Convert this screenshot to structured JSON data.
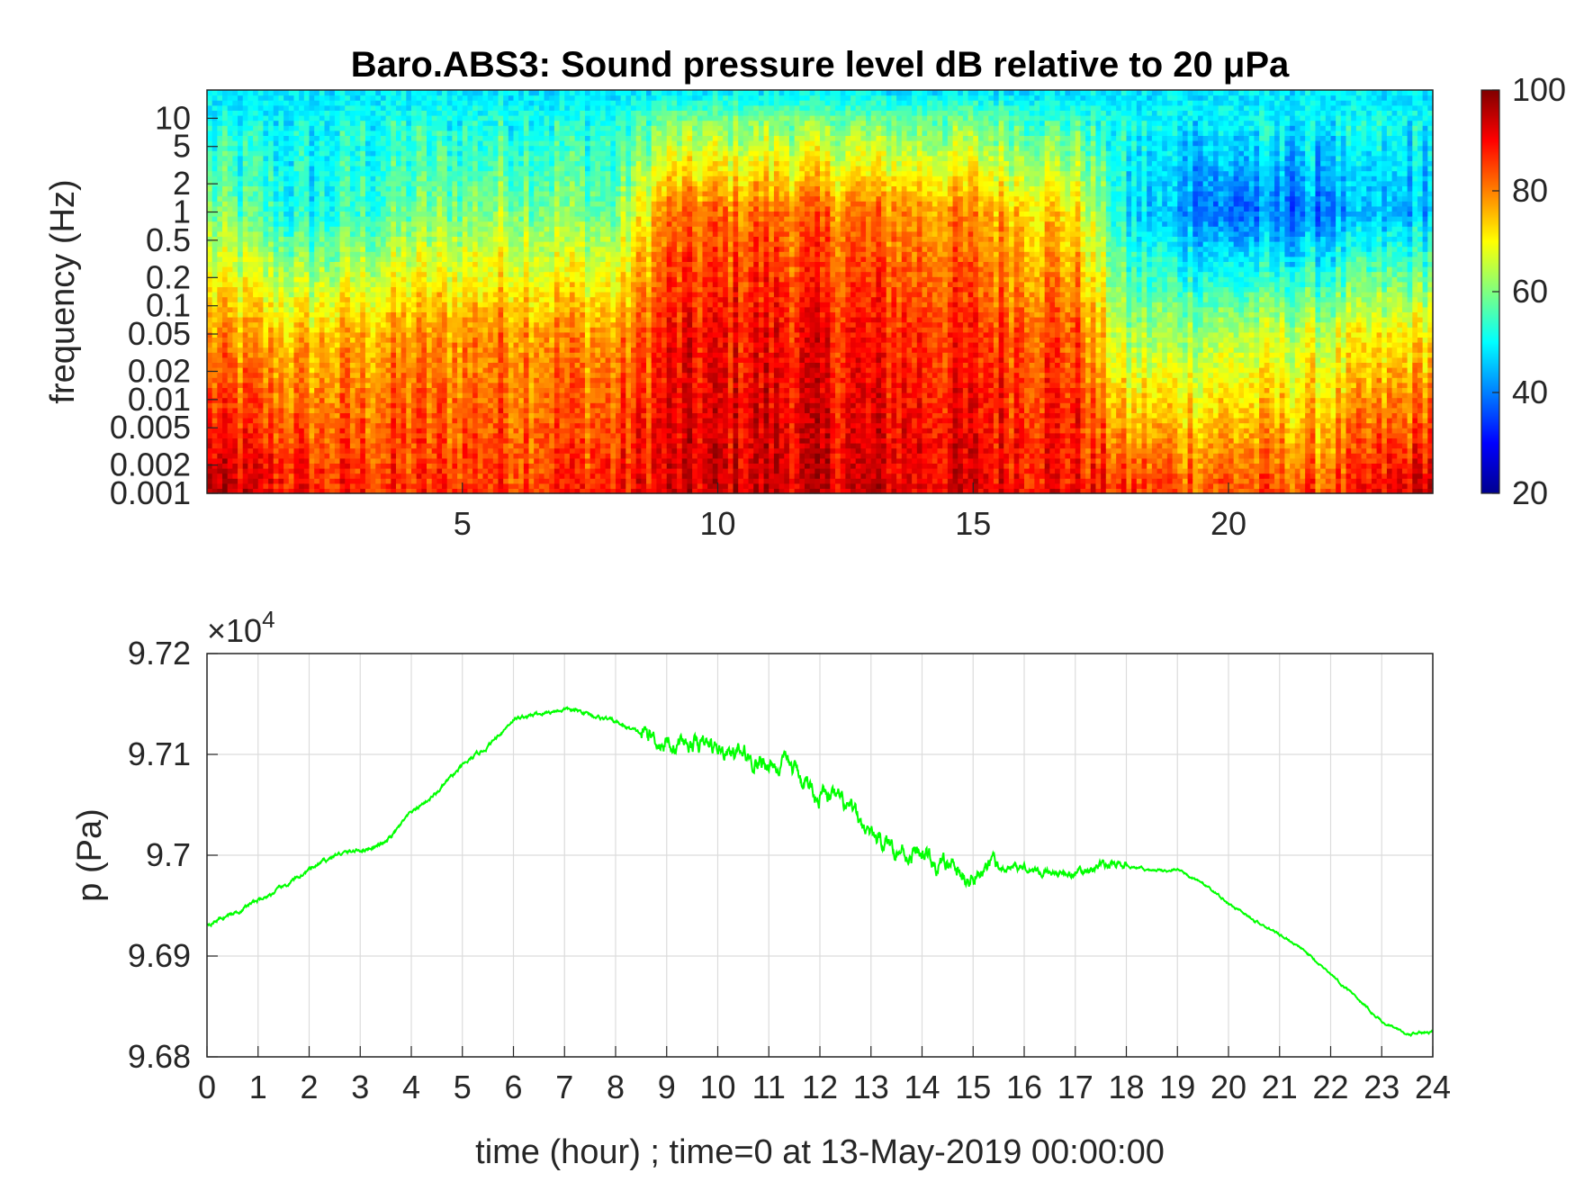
{
  "chart_data": [
    {
      "type": "heatmap",
      "title": "Baro.ABS3: Sound pressure level dB relative to 20 μPa",
      "xlabel": "",
      "ylabel": "frequency (Hz)",
      "xlim": [
        0,
        24
      ],
      "x_ticks": [
        "5",
        "10",
        "15",
        "20"
      ],
      "x_tick_values": [
        5,
        10,
        15,
        20
      ],
      "y_scale": "log",
      "ylim": [
        0.001,
        20
      ],
      "y_ticks": [
        "10",
        "5",
        "2",
        "1",
        "0.5",
        "0.2",
        "0.1",
        "0.05",
        "0.02",
        "0.01",
        "0.005",
        "0.002",
        "0.001"
      ],
      "y_tick_values": [
        10,
        5,
        2,
        1,
        0.5,
        0.2,
        0.1,
        0.05,
        0.02,
        0.01,
        0.005,
        0.002,
        0.001
      ],
      "colormap": "jet",
      "colorbar": {
        "range": [
          20,
          100
        ],
        "ticks": [
          "100",
          "80",
          "60",
          "40",
          "20"
        ],
        "tick_values": [
          100,
          80,
          60,
          40,
          20
        ]
      },
      "description_values": {
        "hours": [
          0,
          2,
          4,
          6,
          8,
          9,
          11,
          13,
          15,
          17,
          18,
          20,
          22,
          24
        ],
        "level_at_0.001Hz": [
          95,
          88,
          86,
          87,
          88,
          92,
          94,
          93,
          92,
          90,
          86,
          84,
          84,
          95
        ],
        "level_at_0.05Hz": [
          78,
          74,
          78,
          80,
          78,
          88,
          90,
          88,
          86,
          84,
          62,
          64,
          66,
          72
        ],
        "level_at_1Hz": [
          60,
          50,
          58,
          62,
          58,
          80,
          82,
          80,
          78,
          72,
          48,
          38,
          40,
          46
        ],
        "level_at_10Hz": [
          50,
          50,
          52,
          52,
          52,
          58,
          60,
          58,
          58,
          54,
          50,
          50,
          50,
          50
        ]
      }
    },
    {
      "type": "line",
      "title": "",
      "xlabel": "time (hour) ; time=0 at 13-May-2019 00:00:00",
      "ylabel": "p (Pa)",
      "y_exponent_label": "×10",
      "y_exponent": "4",
      "xlim": [
        0,
        24
      ],
      "ylim": [
        96800,
        97200
      ],
      "x_ticks": [
        "0",
        "1",
        "2",
        "3",
        "4",
        "5",
        "6",
        "7",
        "8",
        "9",
        "10",
        "11",
        "12",
        "13",
        "14",
        "15",
        "16",
        "17",
        "18",
        "19",
        "20",
        "21",
        "22",
        "23",
        "24"
      ],
      "y_ticks": [
        "9.72",
        "9.71",
        "9.7",
        "9.69",
        "9.68"
      ],
      "y_tick_values": [
        97200,
        97100,
        97000,
        96900,
        96800
      ],
      "grid": true,
      "line_color": "#00ff00",
      "series": [
        {
          "x": [
            0,
            0.5,
            1,
            1.5,
            2,
            2.5,
            3,
            3.5,
            4,
            4.5,
            5,
            5.5,
            6,
            6.5,
            7,
            7.5,
            8,
            8.5,
            9,
            9.5,
            10,
            10.5,
            11,
            11.5,
            12,
            12.5,
            13,
            13.5,
            14,
            14.5,
            15,
            15.5,
            16,
            16.5,
            17,
            17.5,
            18,
            18.5,
            19,
            19.5,
            20,
            20.5,
            21,
            21.5,
            22,
            22.5,
            23,
            23.5,
            24
          ],
          "y": [
            96932,
            96942,
            96955,
            96968,
            96985,
            97000,
            97005,
            97012,
            97042,
            97062,
            97088,
            97108,
            97135,
            97140,
            97145,
            97140,
            97132,
            97120,
            97112,
            97112,
            97105,
            97098,
            97092,
            97082,
            97062,
            97045,
            97020,
            97008,
            96998,
            96985,
            96978,
            96985,
            96990,
            96982,
            96982,
            96990,
            96990,
            96985,
            96985,
            96972,
            96952,
            96935,
            96922,
            96905,
            96882,
            96860,
            96835,
            96822,
            96825
          ]
        }
      ]
    }
  ]
}
